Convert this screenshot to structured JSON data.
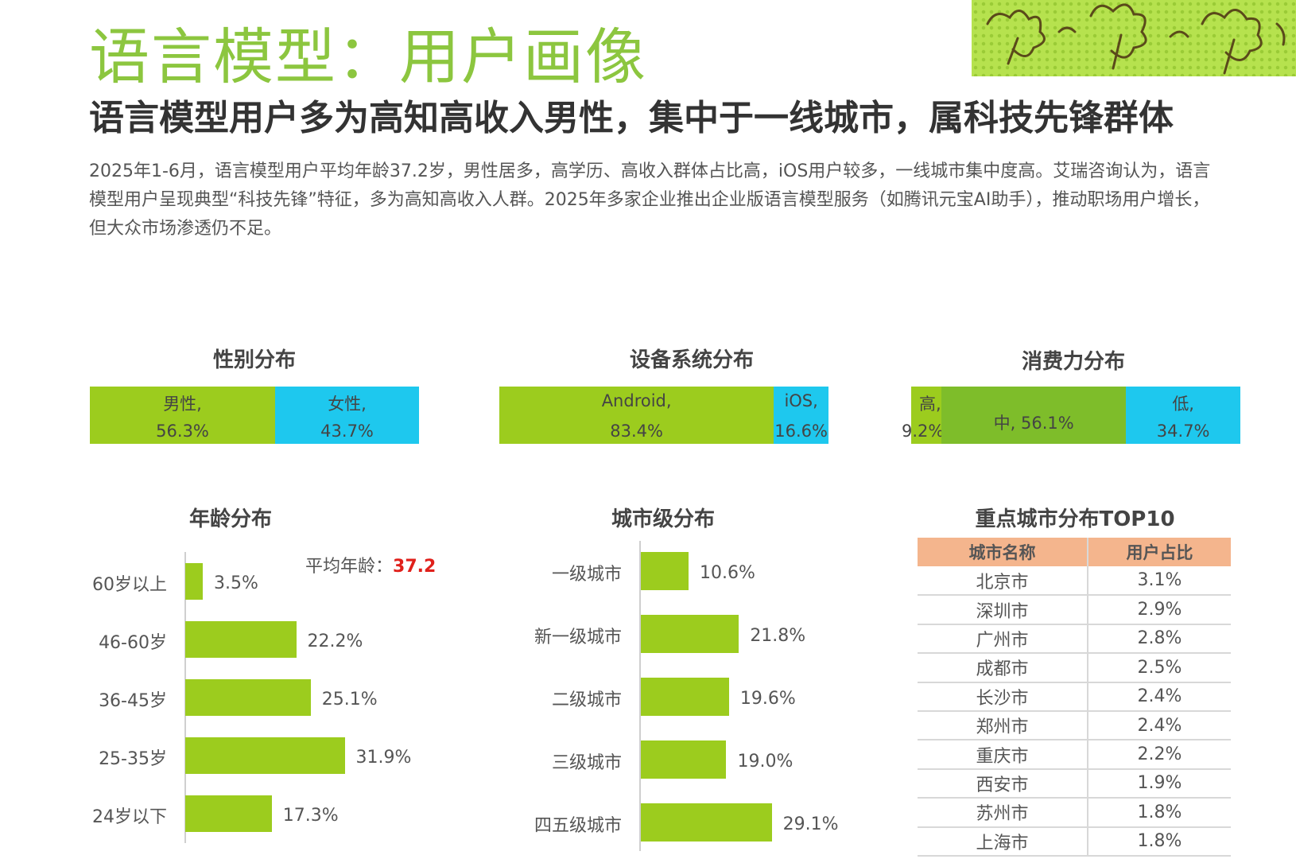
{
  "title": "语言模型：用户画像",
  "subtitle": "语言模型用户多为高知高收入男性，集中于一线城市，属科技先锋群体",
  "description": "2025年1-6月，语言模型用户平均年龄37.2岁，男性居多，高学历、高收入群体占比高，iOS用户较多，一线城市集中度高。艾瑞咨询认为，语言模型用户呈现典型“科技先锋”特征，多为高知高收入人群。2025年多家企业推出企业版语言模型服务（如腾讯元宝AI助手），推动职场用户增长，但大众市场渗透仍不足。",
  "colors": {
    "green": "#9ccc1e",
    "cyan": "#1ec8ee",
    "dark_green": "#7ebd2a",
    "title_green": "#8cc63f",
    "table_header": "#f4b58d",
    "highlight_red": "#e0201b"
  },
  "chart_data": [
    {
      "type": "bar",
      "orientation": "stacked-horizontal",
      "title": "性别分布",
      "segments": [
        {
          "label": "男性,",
          "value_label": "56.3%",
          "value": 56.3,
          "color": "#9ccc1e"
        },
        {
          "label": "女性,",
          "value_label": "43.7%",
          "value": 43.7,
          "color": "#1ec8ee"
        }
      ]
    },
    {
      "type": "bar",
      "orientation": "stacked-horizontal",
      "title": "设备系统分布",
      "segments": [
        {
          "label": "Android,",
          "value_label": "83.4%",
          "value": 83.4,
          "color": "#9ccc1e"
        },
        {
          "label": "iOS,",
          "value_label": "16.6%",
          "value": 16.6,
          "color": "#1ec8ee"
        }
      ]
    },
    {
      "type": "bar",
      "orientation": "stacked-horizontal",
      "title": "消费力分布",
      "segments": [
        {
          "label": "高,",
          "value_label": "9.2%",
          "value": 9.2,
          "color": "#9ccc1e"
        },
        {
          "label": "中, 56.1%",
          "value_label": "",
          "value": 56.1,
          "color": "#7ebd2a"
        },
        {
          "label": "低,",
          "value_label": "34.7%",
          "value": 34.7,
          "color": "#1ec8ee"
        }
      ]
    },
    {
      "type": "bar",
      "orientation": "horizontal",
      "title": "年龄分布",
      "annotation": {
        "label": "平均年龄：",
        "value": "37.2"
      },
      "categories": [
        "60岁以上",
        "46-60岁",
        "36-45岁",
        "25-35岁",
        "24岁以下"
      ],
      "values": [
        3.5,
        22.2,
        25.1,
        31.9,
        17.3
      ],
      "value_labels": [
        "3.5%",
        "22.2%",
        "25.1%",
        "31.9%",
        "17.3%"
      ],
      "xlim": [
        0,
        35
      ]
    },
    {
      "type": "bar",
      "orientation": "horizontal",
      "title": "城市级分布",
      "categories": [
        "一级城市",
        "新一级城市",
        "二级城市",
        "三级城市",
        "四五级城市"
      ],
      "values": [
        10.6,
        21.8,
        19.6,
        19.0,
        29.1
      ],
      "value_labels": [
        "10.6%",
        "21.8%",
        "19.6%",
        "19.0%",
        "29.1%"
      ],
      "xlim": [
        0,
        35
      ]
    },
    {
      "type": "table",
      "title": "重点城市分布TOP10",
      "columns": [
        "城市名称",
        "用户占比"
      ],
      "rows": [
        [
          "北京市",
          "3.1%"
        ],
        [
          "深圳市",
          "2.9%"
        ],
        [
          "广州市",
          "2.8%"
        ],
        [
          "成都市",
          "2.5%"
        ],
        [
          "长沙市",
          "2.4%"
        ],
        [
          "郑州市",
          "2.4%"
        ],
        [
          "重庆市",
          "2.2%"
        ],
        [
          "西安市",
          "1.9%"
        ],
        [
          "苏州市",
          "1.8%"
        ],
        [
          "上海市",
          "1.8%"
        ]
      ]
    }
  ]
}
